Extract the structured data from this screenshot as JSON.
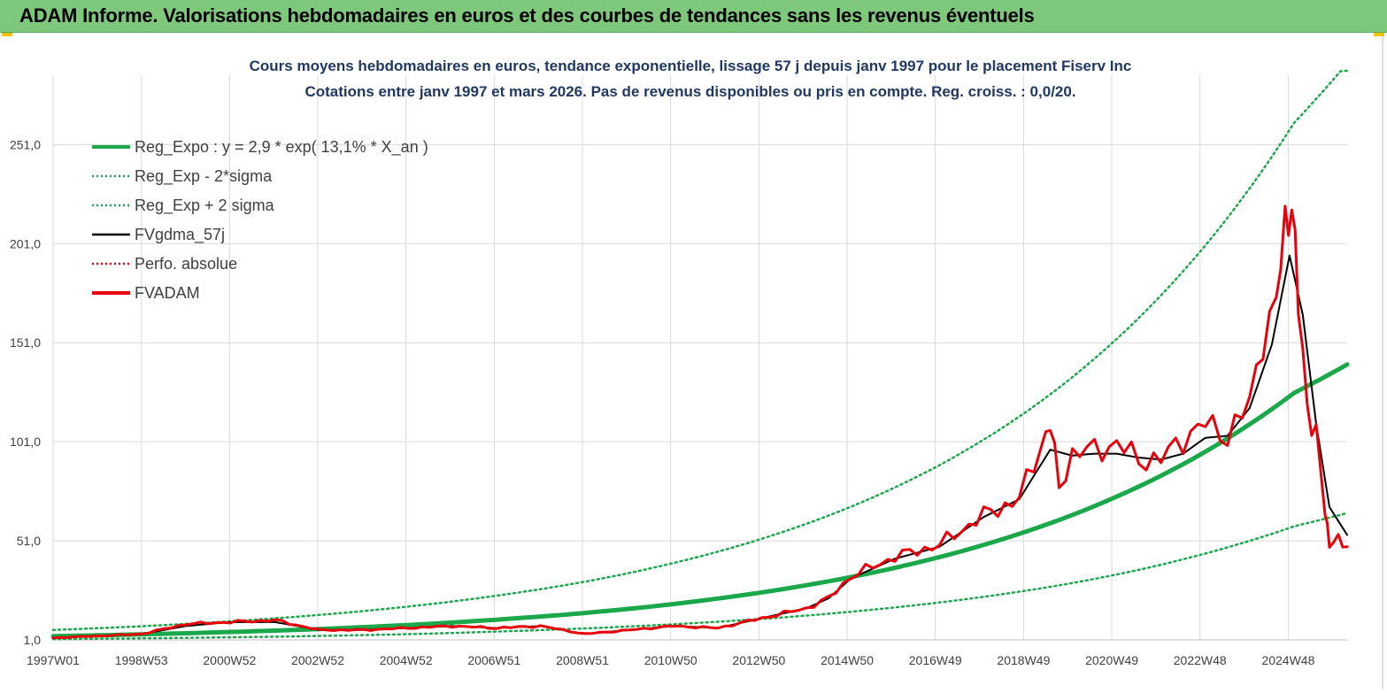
{
  "page": {
    "title": "ADAM Informe. Valorisations hebdomadaires en euros et des courbes de tendances sans les revenus éventuels"
  },
  "chart_data": {
    "type": "line",
    "title": "Cours moyens hebdomadaires en euros, tendance exponentielle, lissage 57 j depuis janv 1997 pour le placement Fiserv Inc",
    "subtitle": "Cotations entre janv 1997 et mars 2026. Pas de revenus disponibles ou pris en compte. Reg. croiss. : 0,0/20.",
    "xlabel": "",
    "ylabel": "",
    "x_tick_labels": [
      "1997W01",
      "1998W53",
      "2000W52",
      "2002W52",
      "2004W52",
      "2006W51",
      "2008W51",
      "2010W50",
      "2012W50",
      "2014W50",
      "2016W49",
      "2018W49",
      "2020W49",
      "2022W48",
      "2024W48"
    ],
    "x_range": [
      1997.0,
      2026.2
    ],
    "y_tick_labels": [
      "1,0",
      "51,0",
      "101,0",
      "151,0",
      "201,0",
      "251,0"
    ],
    "ylim": [
      1,
      286
    ],
    "grid": true,
    "legend_position": "top-left",
    "colors": {
      "trend": "#1aa84b",
      "band": "#1aa84b",
      "smooth": "#000000",
      "perfo": "#e8000b",
      "adam": "#e8000b"
    },
    "legend": [
      {
        "label": "Reg_Expo : y = 2,9 * exp( 13,1% *  X_an )",
        "color": "#1aa84b",
        "style": "solid-thick"
      },
      {
        "label": "Reg_Exp - 2*sigma",
        "color": "#1aa84b",
        "style": "dotted"
      },
      {
        "label": "Reg_Exp + 2 sigma",
        "color": "#1aa84b",
        "style": "dotted"
      },
      {
        "label": "FVgdma_57j",
        "color": "#000000",
        "style": "solid-thin"
      },
      {
        "label": "Perfo. absolue",
        "color": "#e8000b",
        "style": "dotted"
      },
      {
        "label": "FVADAM",
        "color": "#e8000b",
        "style": "solid-thick"
      }
    ],
    "series": [
      {
        "name": "Reg_Expo : y = 2,9 * exp( 13,1% *  X_an )",
        "x": [
          1997,
          1999,
          2001,
          2003,
          2005,
          2007,
          2009,
          2011,
          2013,
          2015,
          2017,
          2019,
          2021,
          2023,
          2025,
          2026.2
        ],
        "values": [
          2.9,
          3.8,
          5.0,
          6.5,
          8.5,
          11.2,
          14.6,
          19.1,
          25.0,
          32.7,
          42.8,
          56.0,
          73.3,
          96.0,
          125.6,
          140.0
        ]
      },
      {
        "name": "Reg_Exp - 2*sigma",
        "x": [
          1997,
          1999,
          2001,
          2003,
          2005,
          2007,
          2009,
          2011,
          2013,
          2015,
          2017,
          2019,
          2021,
          2023,
          2025,
          2026.2
        ],
        "values": [
          1.35,
          1.8,
          2.3,
          3.0,
          3.9,
          5.2,
          6.8,
          8.9,
          11.6,
          15.2,
          19.9,
          26.0,
          34.0,
          44.6,
          58.3,
          65.0
        ]
      },
      {
        "name": "Reg_Exp + 2 sigma",
        "x": [
          1997,
          1999,
          2001,
          2003,
          2005,
          2007,
          2009,
          2011,
          2013,
          2015,
          2017,
          2019,
          2021,
          2023,
          2025,
          2026.2
        ],
        "values": [
          6.0,
          7.9,
          10.4,
          13.6,
          17.8,
          23.3,
          30.4,
          39.8,
          52.1,
          68.2,
          89.2,
          116.8,
          152.9,
          200.1,
          261.9,
          292.0
        ]
      },
      {
        "name": "FVgdma_57j",
        "x": [
          1997,
          1998,
          1999,
          2000,
          2001,
          2002,
          2003,
          2004,
          2005,
          2006,
          2007,
          2008,
          2009,
          2010,
          2011,
          2012,
          2013,
          2014,
          2014.5,
          2015,
          2016,
          2017,
          2018,
          2018.8,
          2019.5,
          2020,
          2020.5,
          2021,
          2021.5,
          2022,
          2022.5,
          2023,
          2023.5,
          2024,
          2024.5,
          2024.9,
          2025.2,
          2025.5,
          2025.8,
          2026.2
        ],
        "values": [
          2,
          3,
          4,
          8,
          10,
          10,
          6,
          6,
          7,
          8,
          7,
          8,
          4,
          6,
          8,
          7,
          12,
          17,
          22,
          32,
          42,
          48,
          63,
          72,
          97,
          94,
          95,
          95,
          93,
          92,
          95,
          103,
          104,
          118,
          150,
          195,
          165,
          110,
          68,
          54
        ]
      },
      {
        "name": "FVADAM",
        "x": [
          1997,
          1998,
          1999,
          2000,
          2001,
          2002,
          2003,
          2004,
          2005,
          2006,
          2007,
          2008,
          2009,
          2010,
          2011,
          2012,
          2013,
          2014,
          2014.5,
          2015,
          2016,
          2017,
          2018,
          2018.8,
          2019.3,
          2019.5,
          2019.7,
          2020,
          2020.5,
          2021,
          2021.5,
          2022,
          2022.5,
          2023,
          2023.5,
          2024,
          2024.3,
          2024.6,
          2024.8,
          2024.95,
          2025.1,
          2025.3,
          2025.5,
          2025.7,
          2025.8,
          2026,
          2026.2
        ],
        "values": [
          2,
          3,
          4,
          9,
          10,
          11,
          6,
          6,
          7,
          8,
          7,
          8,
          4,
          6,
          8,
          7,
          12,
          17,
          22,
          33,
          43,
          49,
          64,
          72,
          100,
          110,
          78,
          95,
          97,
          100,
          92,
          92,
          103,
          110,
          104,
          120,
          155,
          170,
          210,
          225,
          168,
          120,
          105,
          65,
          51,
          51,
          47
        ]
      },
      {
        "name": "Perfo. absolue",
        "x": [],
        "values": []
      }
    ]
  }
}
